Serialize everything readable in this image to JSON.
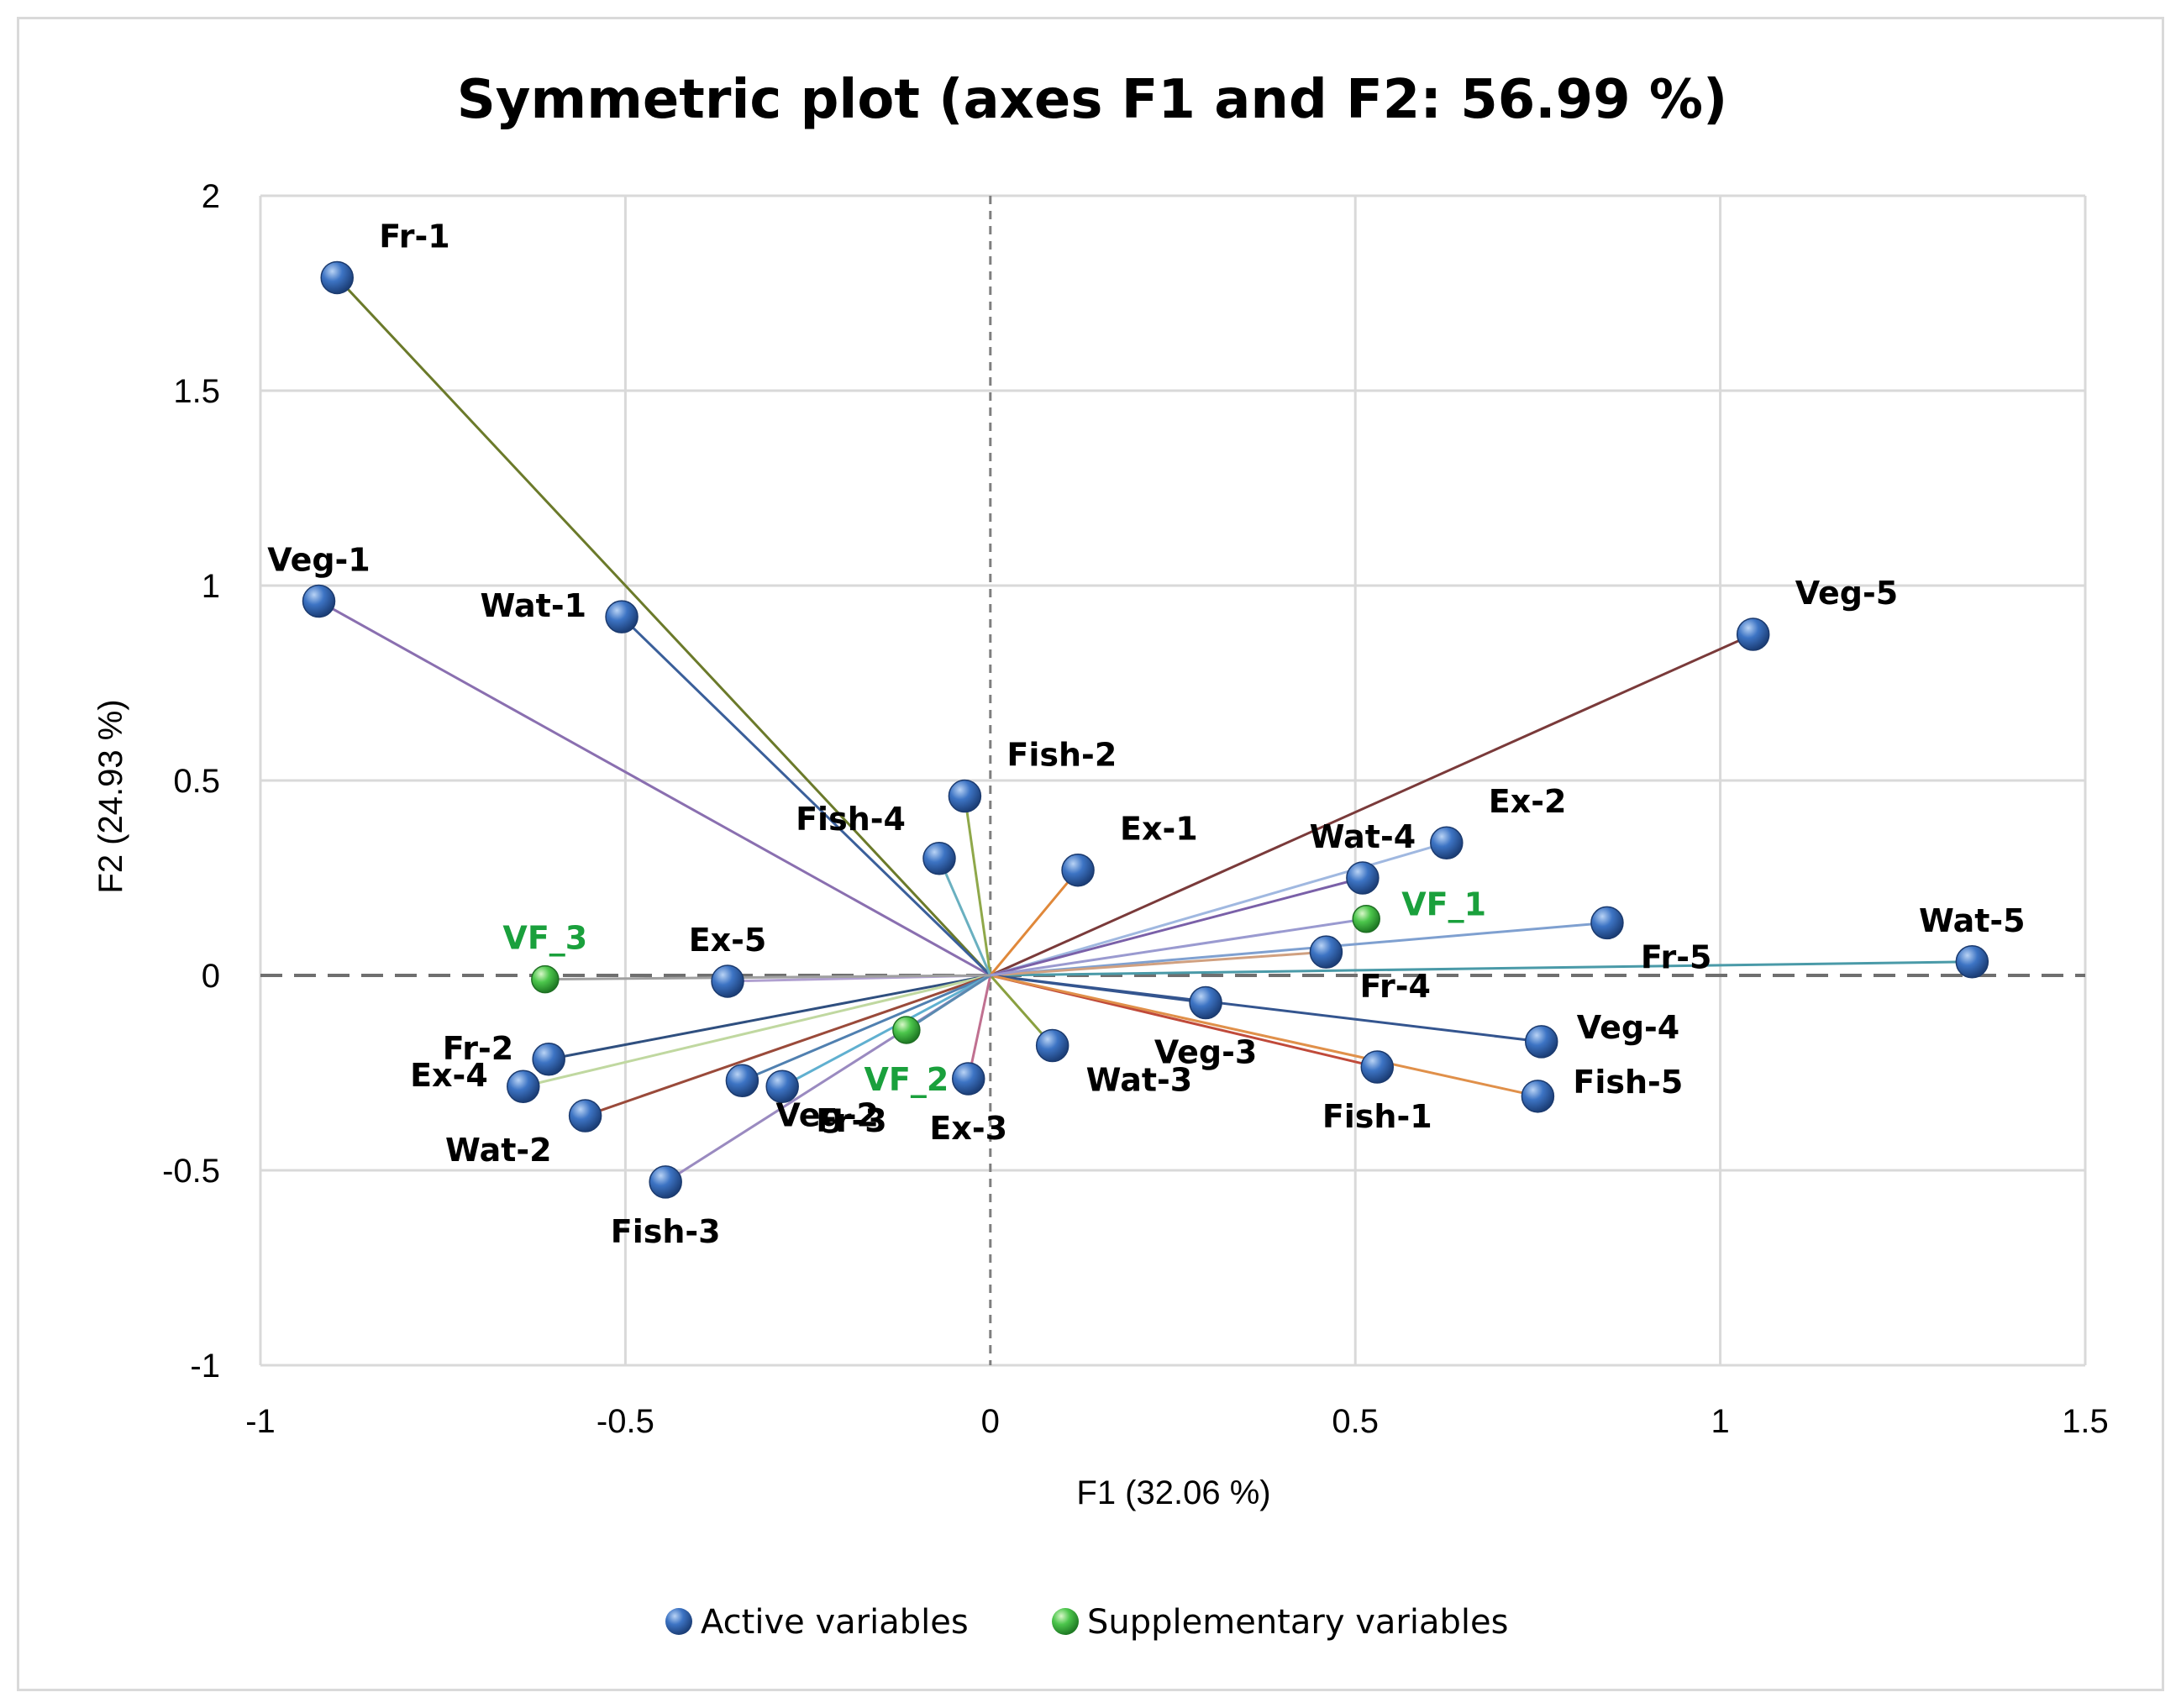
{
  "chart_data": {
    "type": "scatter",
    "title": "Symmetric plot (axes F1 and F2: 56.99 %)",
    "xlabel": "F1 (32.06 %)",
    "ylabel": "F2 (24.93 %)",
    "xlim": [
      -1,
      1.5
    ],
    "ylim": [
      -1,
      2
    ],
    "xticks": [
      -1,
      -0.5,
      0,
      0.5,
      1,
      1.5
    ],
    "yticks": [
      -1,
      -0.5,
      0,
      0.5,
      1,
      1.5,
      2
    ],
    "xtick_labels": [
      "-1",
      "-0.5",
      "0",
      "0.5",
      "1",
      "1.5"
    ],
    "ytick_labels": [
      "-1",
      "-0.5",
      "0",
      "0.5",
      "1",
      "1.5",
      "2"
    ],
    "grid": true,
    "legend": {
      "position": "bottom",
      "entries": [
        {
          "name": "Active variables",
          "color": "#2f62ad"
        },
        {
          "name": "Supplementary variables",
          "color": "#3fbf3f"
        }
      ]
    },
    "series": [
      {
        "name": "Active variables",
        "points": [
          {
            "label": "Fr-1",
            "x": -0.895,
            "y": 1.79,
            "line_color": "#6b7a2a",
            "label_pos": "ne"
          },
          {
            "label": "Veg-1",
            "x": -0.92,
            "y": 0.96,
            "line_color": "#8a6fb0",
            "label_pos": "n"
          },
          {
            "label": "Wat-1",
            "x": -0.505,
            "y": 0.92,
            "line_color": "#3a5f9a",
            "label_pos": "w"
          },
          {
            "label": "Veg-5",
            "x": 1.045,
            "y": 0.875,
            "line_color": "#7a3a3a",
            "label_pos": "ne"
          },
          {
            "label": "Fish-2",
            "x": -0.035,
            "y": 0.46,
            "line_color": "#8fa84a",
            "label_pos": "ne"
          },
          {
            "label": "Fish-4",
            "x": -0.07,
            "y": 0.3,
            "line_color": "#6ab0c0",
            "label_pos": "nw"
          },
          {
            "label": "Ex-1",
            "x": 0.12,
            "y": 0.27,
            "line_color": "#e0883a",
            "label_pos": "ne"
          },
          {
            "label": "Ex-2",
            "x": 0.625,
            "y": 0.34,
            "line_color": "#a0b8e0",
            "label_pos": "ne"
          },
          {
            "label": "Wat-4",
            "x": 0.51,
            "y": 0.25,
            "line_color": "#7a60a8",
            "label_pos": "n"
          },
          {
            "label": "Fr-5",
            "x": 0.845,
            "y": 0.135,
            "line_color": "#7fa0d0",
            "label_pos": "se"
          },
          {
            "label": "Wat-5",
            "x": 1.345,
            "y": 0.035,
            "line_color": "#4a9aa8",
            "label_pos": "n"
          },
          {
            "label": "Fr-4",
            "x": 0.46,
            "y": 0.06,
            "line_color": "#d0a080",
            "label_pos": "se"
          },
          {
            "label": "Ex-5",
            "x": -0.36,
            "y": -0.015,
            "line_color": "#b0a0d0",
            "label_pos": "n"
          },
          {
            "label": "Veg-3",
            "x": 0.295,
            "y": -0.07,
            "line_color": "#34558f",
            "label_pos": "s"
          },
          {
            "label": "Veg-4",
            "x": 0.755,
            "y": -0.17,
            "line_color": "#34558f",
            "label_pos": "e"
          },
          {
            "label": "Fish-1",
            "x": 0.53,
            "y": -0.235,
            "line_color": "#c04a3a",
            "label_pos": "s"
          },
          {
            "label": "Fish-5",
            "x": 0.75,
            "y": -0.31,
            "line_color": "#e0904a",
            "label_pos": "e"
          },
          {
            "label": "Wat-3",
            "x": 0.085,
            "y": -0.18,
            "line_color": "#8aa040",
            "label_pos": "se"
          },
          {
            "label": "Ex-3",
            "x": -0.03,
            "y": -0.265,
            "line_color": "#c07090",
            "label_pos": "s"
          },
          {
            "label": "Fr-2",
            "x": -0.605,
            "y": -0.215,
            "line_color": "#2f4f7f",
            "label_pos": "w"
          },
          {
            "label": "Ex-4",
            "x": -0.64,
            "y": -0.285,
            "line_color": "#c0d8a0",
            "label_pos": "w"
          },
          {
            "label": "Wat-2",
            "x": -0.555,
            "y": -0.36,
            "line_color": "#9a4a3a",
            "label_pos": "sw"
          },
          {
            "label": "Veg-2",
            "x": -0.34,
            "y": -0.27,
            "line_color": "#5080b0",
            "label_pos": "se"
          },
          {
            "label": "Fr-3",
            "x": -0.285,
            "y": -0.285,
            "line_color": "#60b0d0",
            "label_pos": "se"
          },
          {
            "label": "Fish-3",
            "x": -0.445,
            "y": -0.53,
            "line_color": "#9a8ac0",
            "label_pos": "s"
          }
        ]
      },
      {
        "name": "Supplementary variables",
        "points": [
          {
            "label": "VF_1",
            "x": 0.515,
            "y": 0.145,
            "line_color": "#9a9ad0",
            "label_pos": "e"
          },
          {
            "label": "VF_2",
            "x": -0.115,
            "y": -0.14,
            "line_color": "#5a8ab0",
            "label_pos": "s"
          },
          {
            "label": "VF_3",
            "x": -0.61,
            "y": -0.01,
            "line_color": "#a0a0a0",
            "label_pos": "n"
          }
        ]
      }
    ]
  }
}
